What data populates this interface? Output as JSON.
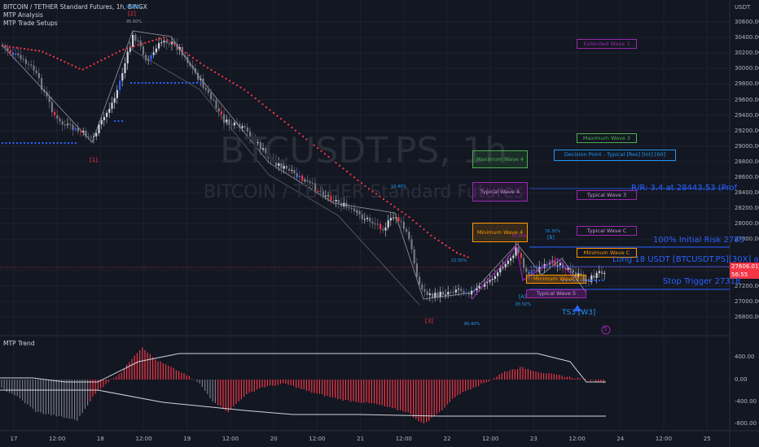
{
  "legend": {
    "symbol": "BITCOIN / TETHER Standard Futures, 1h, BINGX",
    "indicator1": "MTP Analysis",
    "indicator2": "MTP Trade Setups"
  },
  "watermark": {
    "ticker": "BTCUSDT.PS, 1h",
    "name": "BITCOIN / TETHER Standard Futures"
  },
  "price_axis": {
    "currency": "USDT",
    "labels": [
      "30600.00",
      "30400.00",
      "30200.00",
      "30000.00",
      "29800.00",
      "29600.00",
      "29400.00",
      "29200.00",
      "29000.00",
      "28800.00",
      "28600.00",
      "28400.00",
      "28200.00",
      "28000.00",
      "27800.00",
      "27400.00",
      "27200.00",
      "27000.00",
      "26800.00"
    ],
    "current_price": "27606.01",
    "countdown": "56:55"
  },
  "time_axis": {
    "labels": [
      "17",
      "12:00",
      "18",
      "12:00",
      "19",
      "12:00",
      "20",
      "12:00",
      "21",
      "12:00",
      "22",
      "12:00",
      "23",
      "12:00",
      "24",
      "12:00",
      "25"
    ]
  },
  "wave_labels": {
    "w1": "[1]",
    "w2": "[2]",
    "w2_pct_a": "95.60%",
    "w2_pct_b": "95.60%",
    "w3": "[3]",
    "w3_pct": "80.40%",
    "mid_pct": "18.40%",
    "a_label": "[A]",
    "a_pct": "65.50%",
    "b_label": "[B]",
    "b_pct_a": "76.30%",
    "b_pct_b": "76.30%",
    "pct_22": "22.50%",
    "ts3": "TS3 [W3]",
    "circle": "5"
  },
  "targets": {
    "extended_wave_3": "Extended Wave 3",
    "maximum_wave_3": "Maximum Wave 3",
    "decision_point": "Decision Point - Typical [Res] [Int] [60]",
    "maximum_wave_4": "Maximum Wave 4",
    "typical_wave_4": "Typical Wave 4",
    "typical_wave_3": "Typical Wave 3",
    "minimum_wave_4": "Minimum Wave 4",
    "typical_wave_c": "Typical Wave C",
    "minimum_wave_c": "Minimum Wave C",
    "minimum_wave_3": "Minimum Wave 3",
    "typical_wave_5": "Typical Wave 5"
  },
  "trade": {
    "rr": "R/R: 3.4 at 28443.53 (Prof",
    "initial_risk": "100% Initial Risk 2783",
    "long": "Long 18 USDT [BTCUSDT.PS][30X] at 2",
    "stop": "Stop Trigger 27318"
  },
  "sub_panel": {
    "title": "MTP Trend",
    "labels": [
      "400.00",
      "0.00",
      "-400.00",
      "-800.00"
    ]
  },
  "colors": {
    "background": "#131722",
    "bull": "#2962ff",
    "bear": "#f23645",
    "neutral": "#787b86"
  }
}
